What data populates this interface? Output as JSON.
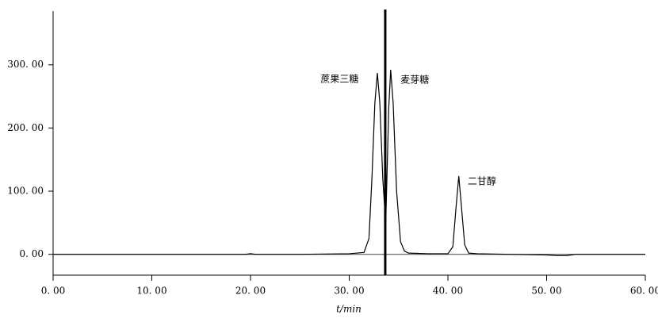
{
  "chart_data": {
    "type": "line",
    "x_label": "t/min",
    "x": [
      0,
      10,
      19.5,
      20,
      20.5,
      25,
      30,
      31.5,
      32,
      32.3,
      32.6,
      32.85,
      33.1,
      33.4,
      33.7,
      34.0,
      34.2,
      34.45,
      34.8,
      35.2,
      35.6,
      36,
      38,
      40,
      40.5,
      40.8,
      41.1,
      41.4,
      41.7,
      42.1,
      43,
      46,
      50,
      51,
      52,
      52.5,
      53,
      56,
      60
    ],
    "series": [
      {
        "color": "#000000",
        "values": [
          0,
          0,
          0,
          1,
          0,
          0,
          1,
          3,
          25,
          120,
          240,
          287,
          240,
          120,
          48,
          230,
          292,
          240,
          100,
          20,
          5,
          2,
          1,
          1,
          12,
          70,
          124,
          70,
          15,
          2,
          1,
          0,
          -1,
          -2,
          -2,
          -1,
          0,
          0,
          0
        ]
      }
    ],
    "vline": 33.65,
    "annotations": [
      {
        "text": "蔗果三糖",
        "x": 27.1,
        "y": 277
      },
      {
        "text": "麦芽糖",
        "x": 35.2,
        "y": 276
      },
      {
        "text": "二甘醇",
        "x": 42.0,
        "y": 115
      }
    ],
    "xlim": [
      0,
      60
    ],
    "ylim": [
      -33,
      385
    ],
    "xticks": [
      {
        "value": 0,
        "label": "0. 00"
      },
      {
        "value": 10,
        "label": "10. 00"
      },
      {
        "value": 20,
        "label": "20. 00"
      },
      {
        "value": 30,
        "label": "30. 00"
      },
      {
        "value": 40,
        "label": "40. 00"
      },
      {
        "value": 50,
        "label": "50. 00"
      },
      {
        "value": 60,
        "label": "60. 00"
      }
    ],
    "yticks": [
      {
        "value": 0,
        "label": "0. 00"
      },
      {
        "value": 100,
        "label": "100. 00"
      },
      {
        "value": 200,
        "label": "200. 00"
      },
      {
        "value": 300,
        "label": "300. 00"
      }
    ]
  }
}
